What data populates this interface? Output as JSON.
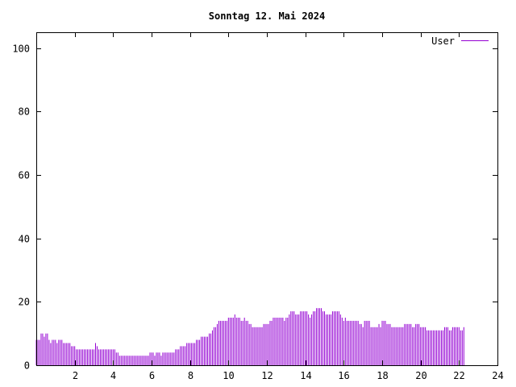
{
  "chart_data": {
    "type": "bar",
    "title": "Sonntag 12. Mai 2024",
    "xlabel": "",
    "ylabel": "",
    "xlim": [
      0,
      24
    ],
    "ylim": [
      0,
      105
    ],
    "xticks": [
      2,
      4,
      6,
      8,
      10,
      12,
      14,
      16,
      18,
      20,
      22,
      24
    ],
    "yticks": [
      0,
      20,
      40,
      60,
      80,
      100
    ],
    "grid": false,
    "legend_position": "top-right",
    "series": [
      {
        "name": "User",
        "color": "#9400d3",
        "x_step_minutes": 5,
        "values": [
          8,
          8,
          8,
          10,
          10,
          9,
          10,
          10,
          8,
          7,
          8,
          8,
          8,
          7,
          8,
          8,
          8,
          7,
          7,
          7,
          7,
          7,
          6,
          6,
          6,
          5,
          5,
          5,
          5,
          5,
          5,
          5,
          5,
          5,
          5,
          5,
          5,
          7,
          6,
          5,
          5,
          5,
          5,
          5,
          5,
          5,
          5,
          5,
          5,
          5,
          4,
          4,
          3,
          3,
          3,
          3,
          3,
          3,
          3,
          3,
          3,
          3,
          3,
          3,
          3,
          3,
          3,
          3,
          3,
          3,
          3,
          4,
          4,
          4,
          3,
          4,
          4,
          4,
          3,
          4,
          4,
          4,
          4,
          4,
          4,
          4,
          4,
          5,
          5,
          5,
          6,
          6,
          6,
          6,
          7,
          7,
          7,
          7,
          7,
          7,
          8,
          8,
          8,
          9,
          9,
          9,
          9,
          9,
          10,
          10,
          11,
          12,
          12,
          13,
          14,
          14,
          14,
          14,
          14,
          14,
          15,
          15,
          15,
          15,
          16,
          15,
          15,
          15,
          14,
          14,
          15,
          14,
          14,
          13,
          13,
          12,
          12,
          12,
          12,
          12,
          12,
          12,
          13,
          13,
          13,
          13,
          14,
          14,
          15,
          15,
          15,
          15,
          15,
          15,
          15,
          14,
          15,
          15,
          16,
          17,
          17,
          17,
          16,
          16,
          16,
          17,
          17,
          17,
          17,
          17,
          16,
          15,
          16,
          17,
          17,
          18,
          18,
          18,
          18,
          17,
          17,
          16,
          16,
          16,
          16,
          17,
          17,
          17,
          17,
          17,
          16,
          15,
          14,
          15,
          14,
          14,
          14,
          14,
          14,
          14,
          14,
          14,
          13,
          13,
          12,
          14,
          14,
          14,
          14,
          12,
          12,
          12,
          12,
          12,
          13,
          12,
          14,
          14,
          14,
          13,
          13,
          13,
          12,
          12,
          12,
          12,
          12,
          12,
          12,
          12,
          13,
          13,
          13,
          13,
          13,
          12,
          12,
          13,
          13,
          13,
          12,
          12,
          12,
          12,
          11,
          11,
          11,
          11,
          11,
          11,
          11,
          11,
          11,
          11,
          11,
          12,
          12,
          12,
          11,
          11,
          12,
          12,
          12,
          12,
          12,
          11,
          11,
          12
        ]
      }
    ]
  }
}
